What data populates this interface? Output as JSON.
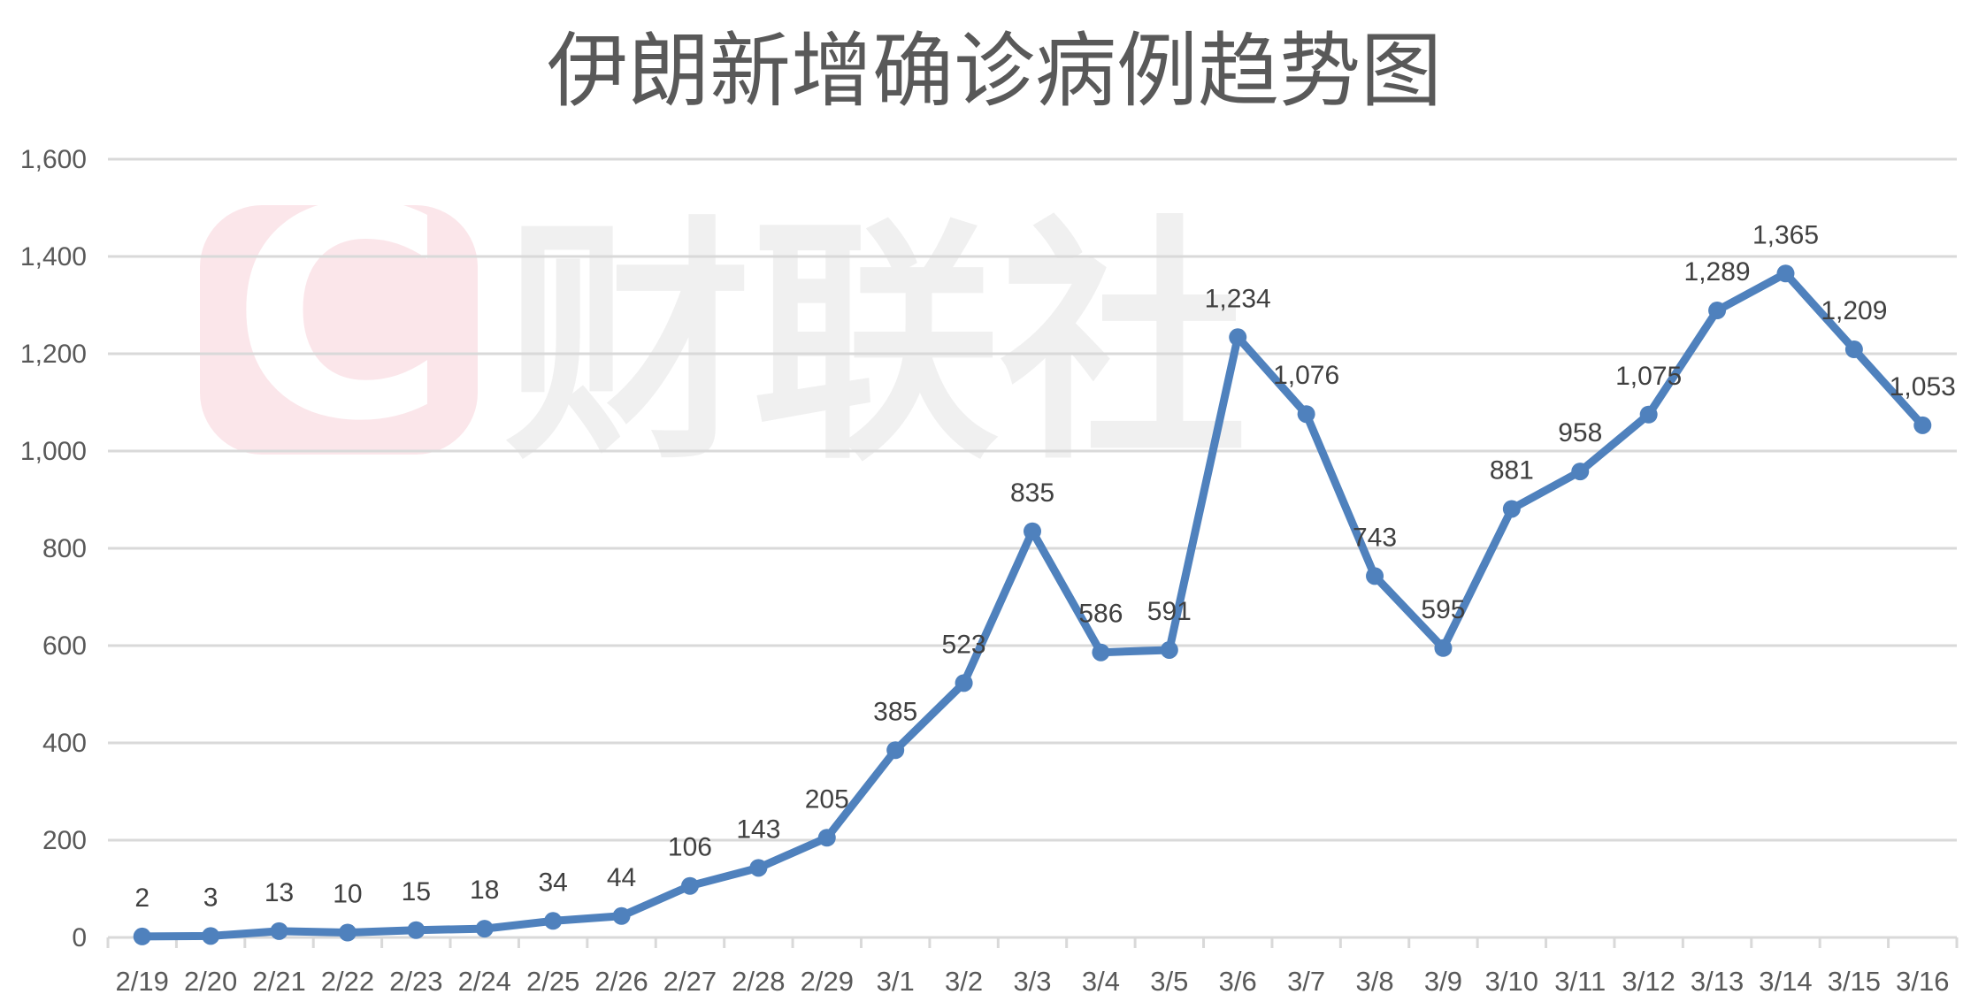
{
  "chart_data": {
    "type": "line",
    "title": "伊朗新增确诊病例趋势图",
    "xlabel": "",
    "ylabel": "",
    "ylim": [
      0,
      1600
    ],
    "yticks": [
      0,
      200,
      400,
      600,
      800,
      1000,
      1200,
      1400,
      1600
    ],
    "ytick_labels": [
      "0",
      "200",
      "400",
      "600",
      "800",
      "1,000",
      "1,200",
      "1,400",
      "1,600"
    ],
    "grid": true,
    "legend": "none",
    "categories": [
      "2/19",
      "2/20",
      "2/21",
      "2/22",
      "2/23",
      "2/24",
      "2/25",
      "2/26",
      "2/27",
      "2/28",
      "2/29",
      "3/1",
      "3/2",
      "3/3",
      "3/4",
      "3/5",
      "3/6",
      "3/7",
      "3/8",
      "3/9",
      "3/10",
      "3/11",
      "3/12",
      "3/13",
      "3/14",
      "3/15",
      "3/16"
    ],
    "series": [
      {
        "name": "新增确诊病例",
        "color": "#4f81bd",
        "values": [
          2,
          3,
          13,
          10,
          15,
          18,
          34,
          44,
          106,
          143,
          205,
          385,
          523,
          835,
          586,
          591,
          1234,
          1076,
          743,
          595,
          881,
          958,
          1075,
          1289,
          1365,
          1209,
          1053
        ],
        "data_labels": [
          "2",
          "3",
          "13",
          "10",
          "15",
          "18",
          "34",
          "44",
          "106",
          "143",
          "205",
          "385",
          "523",
          "835",
          "586",
          "591",
          "1,234",
          "1,076",
          "743",
          "595",
          "881",
          "958",
          "1,075",
          "1,289",
          "1,365",
          "1,209",
          "1,053"
        ]
      }
    ]
  },
  "watermark": {
    "logo_letter": "C",
    "text": "财联社",
    "logo_color": "#fbe6ea",
    "text_color": "#efefef"
  },
  "colors": {
    "series": "#4f81bd",
    "grid": "#d9d9d9",
    "text": "#595959",
    "label": "#404040"
  }
}
